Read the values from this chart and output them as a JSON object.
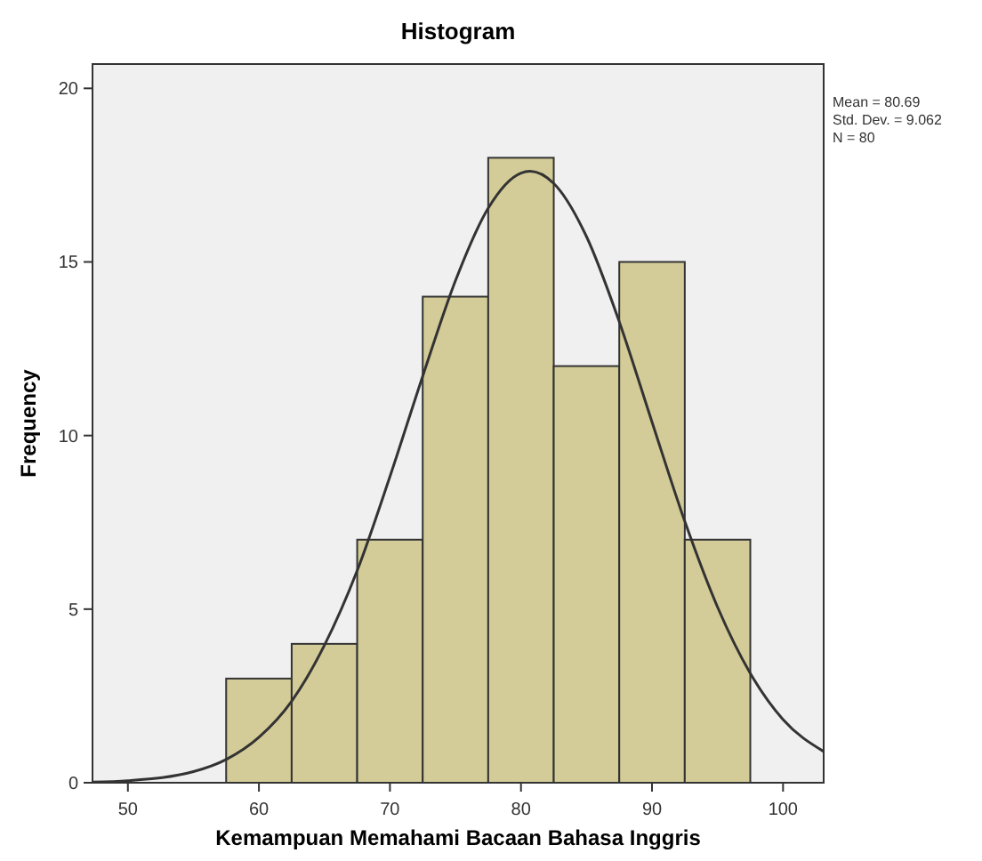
{
  "chart_data": {
    "type": "histogram",
    "title": "Histogram",
    "xlabel": "Kemampuan Memahami Bacaan Bahasa Inggris",
    "ylabel": "Frequency",
    "bins": [
      57.5,
      62.5,
      67.5,
      72.5,
      77.5,
      82.5,
      87.5,
      92.5,
      97.5
    ],
    "values": [
      3,
      4,
      7,
      14,
      18,
      12,
      15,
      7
    ],
    "color": "#d4cc98",
    "series": [
      {
        "type": "line",
        "color": "#333333",
        "x": [
          47.3,
          50,
          55,
          57.5,
          60,
          62.5,
          65,
          67.5,
          70,
          72.5,
          75,
          77.5,
          80,
          80.69,
          82.5,
          85,
          87.5,
          90,
          92.5,
          95,
          97.5,
          100,
          103.1
        ],
        "values": [
          0.02,
          0.06,
          0.32,
          0.67,
          1.31,
          2.35,
          3.96,
          6.11,
          8.82,
          11.71,
          14.46,
          16.55,
          17.56,
          17.61,
          17.26,
          15.73,
          13.28,
          10.39,
          7.53,
          5.06,
          3.15,
          1.82,
          0.9
        ]
      }
    ],
    "xlim": [
      47.3,
      103.1
    ],
    "ylim": [
      0,
      20.7
    ],
    "xticks": [
      50,
      60,
      70,
      80,
      90,
      100
    ],
    "yticks": [
      0,
      5,
      10,
      15,
      20
    ],
    "annotations": [
      "Mean = 80.69",
      "Std. Dev. = 9.062",
      "N = 80"
    ]
  }
}
